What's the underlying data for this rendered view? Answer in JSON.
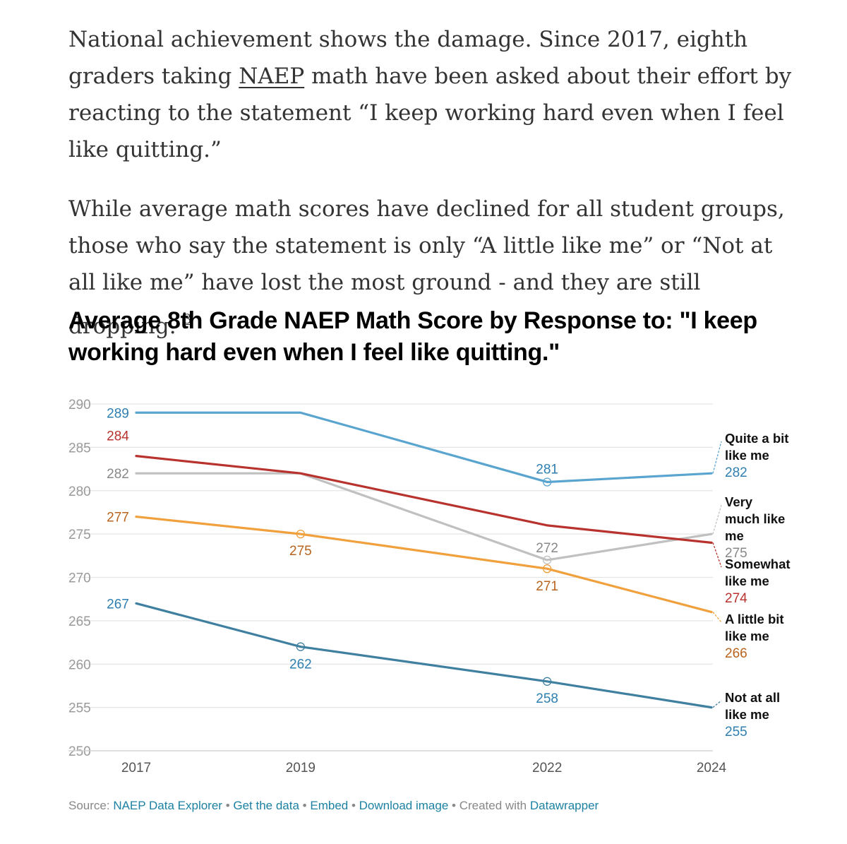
{
  "article": {
    "p1_before": "National achievement shows the damage. Since 2017, eighth graders taking ",
    "p1_link": "NAEP",
    "p1_after": " math have been asked about their effort by reacting to the statement “I keep working hard even when I feel like quitting.”",
    "p2_text": "While average math scores have declined for all student groups, those who say the statement is only “A little like me” or “Not at all like me” have lost the most ground - and they are still dropping. ",
    "p2_footnote": "3"
  },
  "chart_data": {
    "type": "line",
    "title": "Average 8th Grade NAEP Math Score by Response to: \"I keep working hard even when I feel like quitting.\"",
    "x": [
      2017,
      2019,
      2022,
      2024
    ],
    "x_tick_labels": [
      "2017",
      "2019",
      "2022",
      "2024"
    ],
    "ylim": [
      250,
      290
    ],
    "y_ticks": [
      250,
      255,
      260,
      265,
      270,
      275,
      280,
      285,
      290
    ],
    "y_tick_labels": [
      "250",
      "255",
      "260",
      "265",
      "270",
      "275",
      "280",
      "285",
      "290"
    ],
    "grid": true,
    "series": [
      {
        "id": "very-much",
        "name": "Very much like me",
        "name_lines": [
          "Very",
          "much like",
          "me"
        ],
        "end_label": "275",
        "color": "#c0c0c0",
        "label_color": "#888888",
        "values": [
          282,
          282,
          272,
          275
        ],
        "point_labels": {
          "0": "282",
          "2": "272"
        }
      },
      {
        "id": "quite-a-bit",
        "name": "Quite a bit like me",
        "name_lines": [
          "Quite a bit",
          "like me"
        ],
        "end_label": "282",
        "color": "#5aa5d0",
        "label_color": "#2f7fb0",
        "values": [
          289,
          289,
          281,
          282
        ],
        "point_labels": {
          "0": "289",
          "2": "281"
        }
      },
      {
        "id": "somewhat",
        "name": "Somewhat like me",
        "name_lines": [
          "Somewhat",
          "like me"
        ],
        "end_label": "274",
        "color": "#b8322e",
        "label_color": "#b8322e",
        "values": [
          284,
          282,
          276,
          274
        ],
        "point_labels": {
          "0": "284"
        }
      },
      {
        "id": "a-little",
        "name": "A little bit like me",
        "name_lines": [
          "A little bit",
          "like me"
        ],
        "end_label": "266",
        "color": "#f0a03c",
        "label_color": "#b8641e",
        "values": [
          277,
          275,
          271,
          266
        ],
        "point_labels": {
          "0": "277",
          "1": "275",
          "2": "271"
        }
      },
      {
        "id": "not-at-all",
        "name": "Not at all like me",
        "name_lines": [
          "Not at all",
          "like me"
        ],
        "end_label": "255",
        "color": "#3f7fa0",
        "label_color": "#2f7fb0",
        "values": [
          267,
          262,
          258,
          255
        ],
        "point_labels": {
          "0": "267",
          "1": "262",
          "2": "258"
        }
      }
    ]
  },
  "footer": {
    "source_label": "Source: ",
    "source_link": "NAEP Data Explorer",
    "sep": " • ",
    "get_data": "Get the data",
    "embed": "Embed",
    "download": "Download image",
    "created": "Created with ",
    "datawrapper": "Datawrapper"
  }
}
